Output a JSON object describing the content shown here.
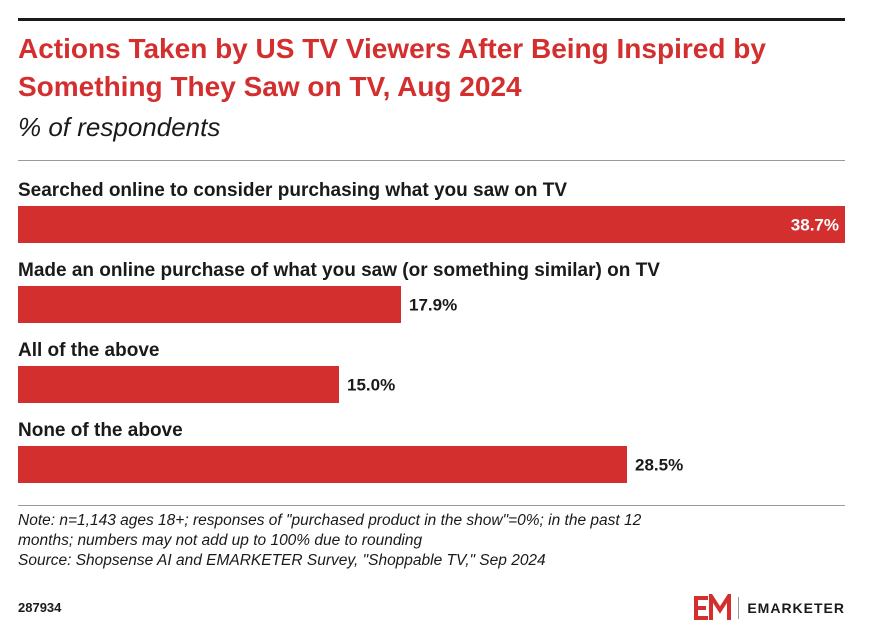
{
  "chart_data": {
    "type": "bar",
    "orientation": "horizontal",
    "title": "Actions Taken by US TV Viewers After Being Inspired by Something They Saw on TV, Aug 2024",
    "subtitle": "% of respondents",
    "categories": [
      "Searched online to consider purchasing what you saw on TV",
      "Made an online purchase of what you saw (or something similar) on TV",
      "All of the above",
      "None of the above"
    ],
    "values": [
      38.7,
      17.9,
      15.0,
      28.5
    ],
    "value_labels": [
      "38.7%",
      "17.9%",
      "15.0%",
      "28.5%"
    ],
    "xlim": [
      0,
      38.7
    ],
    "bar_color": "#d32f2f",
    "grid": false
  },
  "note": {
    "line1": "Note: n=1,143 ages 18+; responses of \"purchased product in the show\"=0%; in the past 12",
    "line2": "months; numbers may not add up to 100% due to rounding",
    "source": "Source: Shopsense AI and EMARKETER Survey, \"Shoppable TV,\" Sep 2024"
  },
  "footer": {
    "chart_id": "287934",
    "brand": "EMARKETER"
  },
  "colors": {
    "accent": "#d32f2f",
    "text": "#1a1a1a"
  }
}
